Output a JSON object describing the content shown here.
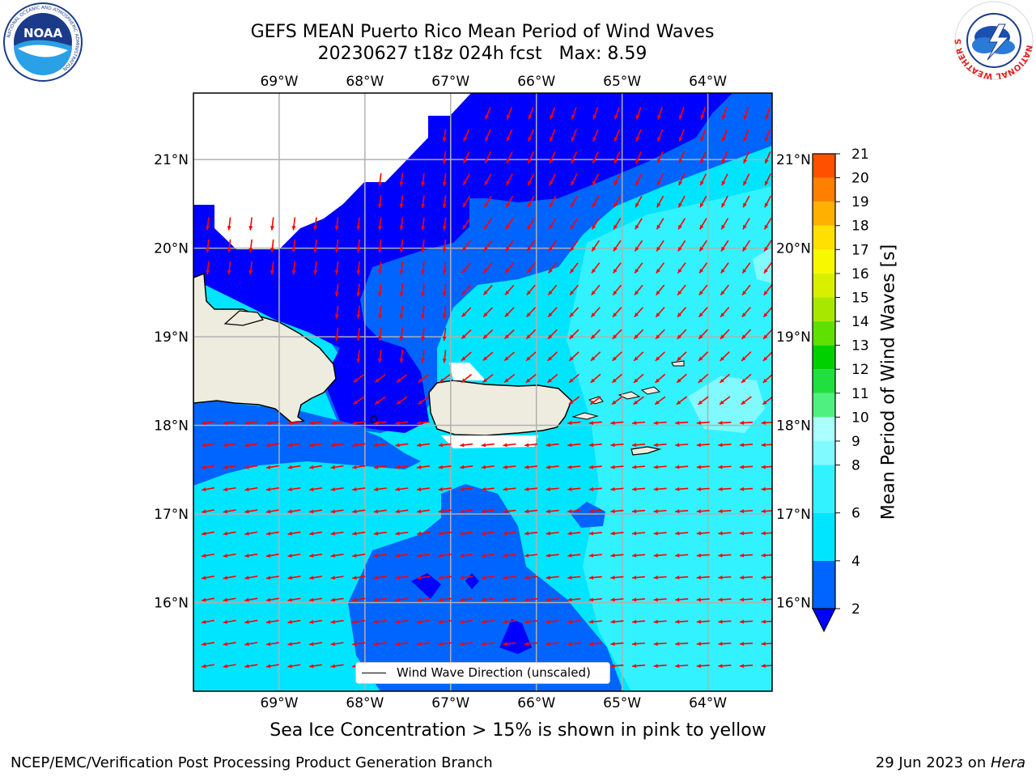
{
  "title": {
    "line1": "GEFS MEAN Puerto Rico Mean Period of Wind Waves",
    "line2": "20230627 t18z 024h fcst   Max: 8.59"
  },
  "map": {
    "lon_range": [
      -70.0,
      -63.25
    ],
    "lat_range": [
      15.0,
      21.75
    ],
    "top_lon_ticks": [
      "69°W",
      "68°W",
      "67°W",
      "66°W",
      "65°W",
      "64°W"
    ],
    "bottom_lon_ticks": [
      "69°W",
      "68°W",
      "67°W",
      "66°W",
      "65°W",
      "64°W"
    ],
    "left_lat_ticks": [
      "21°N",
      "20°N",
      "19°N",
      "18°N",
      "17°N",
      "16°N"
    ],
    "right_lat_ticks": [
      "21°N",
      "20°N",
      "19°N",
      "18°N",
      "17°N",
      "16°N"
    ],
    "grid": true,
    "arrow_color": "#ff0000",
    "land_color": "#eeecdf"
  },
  "legend": {
    "label": "Wind Wave Direction (unscaled)",
    "placement": "bottom-center"
  },
  "colorbar": {
    "label": "Mean Period of Wind Waves [s]",
    "ticks": [
      "2",
      "4",
      "6",
      "8",
      "9",
      "10",
      "11",
      "12",
      "13",
      "14",
      "15",
      "16",
      "17",
      "18",
      "19",
      "20",
      "21"
    ],
    "colors": [
      "#0064ff",
      "#00e5ff",
      "#33f2ff",
      "#80f9ff",
      "#aaffff",
      "#50f080",
      "#20e040",
      "#00d000",
      "#60e000",
      "#a8e800",
      "#d8f000",
      "#f8f800",
      "#ffe000",
      "#ffb000",
      "#ff8000",
      "#ff5000",
      "#ff2000",
      "#ff0000"
    ],
    "under_color": "#0000ff"
  },
  "ice_note": "Sea Ice Concentration > 15% is shown in pink to yellow",
  "footer": {
    "left": "NCEP/EMC/Verification Post Processing Product Generation Branch",
    "right_date": "29 Jun 2023 on ",
    "right_host": "Hera"
  },
  "logos": {
    "left": {
      "icon": "noaa-logo",
      "text": "NOAA",
      "ring_text": "NATIONAL OCEANIC AND ATMOSPHERIC ADMINISTRATION"
    },
    "right": {
      "icon": "nws-logo",
      "ring_text": "NATIONAL WEATHER SERVICE"
    }
  }
}
